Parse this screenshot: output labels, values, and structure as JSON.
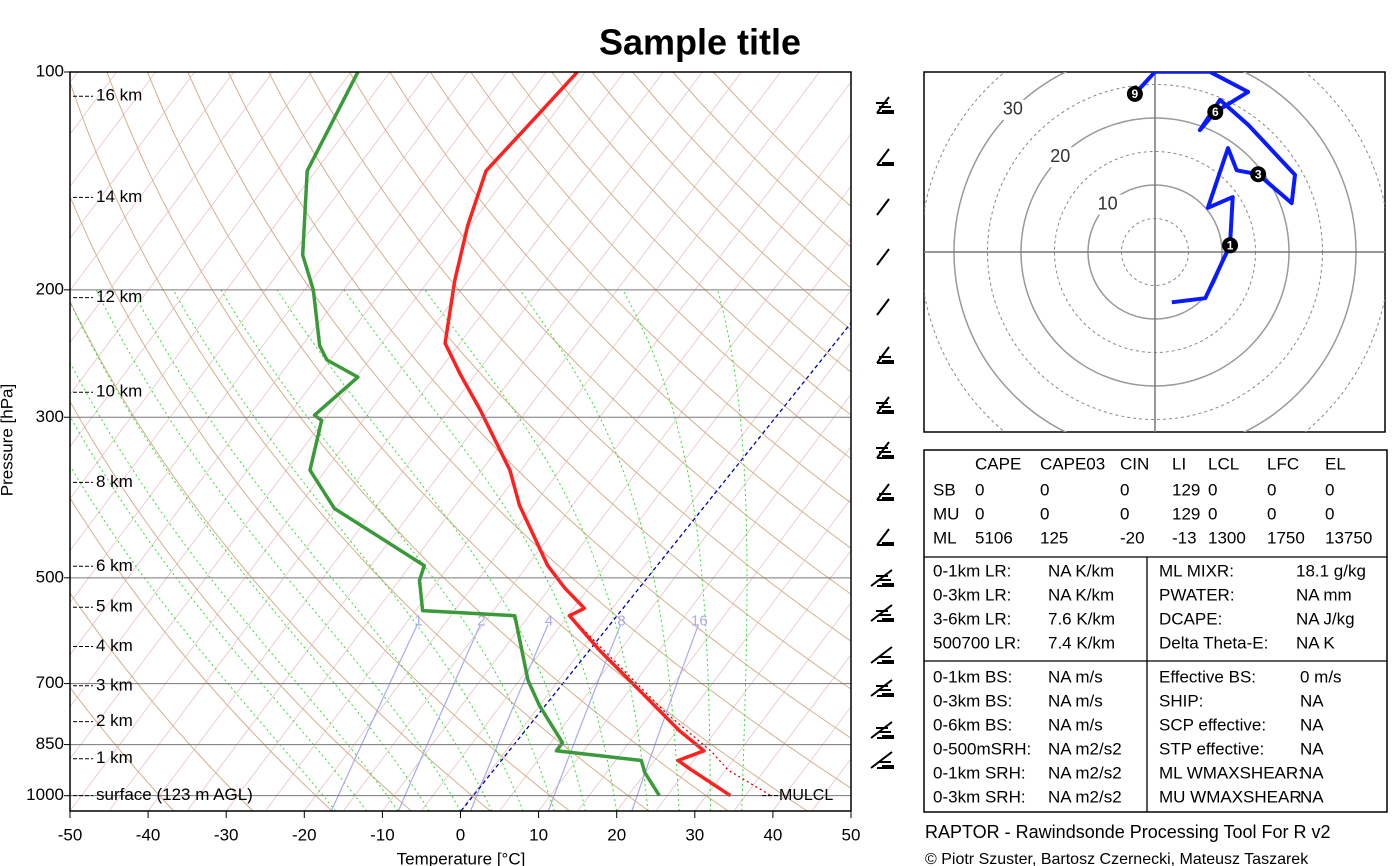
{
  "chart_data": [
    {
      "type": "skewt",
      "title": "Sample title",
      "xlabel": "Temperature [°C]",
      "ylabel": "Pressure [hPa]",
      "xlim": [
        -50,
        50
      ],
      "xticks": [
        -50,
        -40,
        -30,
        -20,
        -10,
        0,
        10,
        20,
        30,
        40,
        50
      ],
      "ylim": [
        100,
        1050
      ],
      "yticks": [
        100,
        200,
        300,
        500,
        700,
        850,
        1000
      ],
      "log_y": true,
      "grid": true,
      "series": [
        {
          "color": "#ff2020",
          "pressure": [
            1000,
            918,
            894,
            867,
            813,
            716,
            630,
            564,
            551,
            517,
            481,
            397,
            355,
            293,
            262,
            237,
            194,
            163,
            137,
            114,
            100
          ],
          "temperature": [
            33.1,
            25.3,
            23.0,
            25.4,
            20.3,
            11.4,
            2.4,
            -4.8,
            -3.6,
            -8.0,
            -12.4,
            -21.8,
            -26.4,
            -36.0,
            -41.9,
            -46.9,
            -51.7,
            -55.3,
            -58.2,
            -56.9,
            -56.0
          ]
        },
        {
          "color": "#3a9a3a",
          "pressure": [
            1000,
            929,
            894,
            867,
            845,
            751,
            693,
            564,
            555,
            504,
            481,
            401,
            355,
            303,
            298,
            264,
            250,
            239,
            200,
            179,
            137,
            100
          ],
          "temperature": [
            24.0,
            19.9,
            18.3,
            6.5,
            6.5,
            0.0,
            -3.9,
            -11.8,
            -24.1,
            -27.4,
            -28.2,
            -45.2,
            -52.0,
            -55.3,
            -56.7,
            -54.8,
            -60.4,
            -62.7,
            -68.9,
            -73.6,
            -81.1,
            -84.1
          ]
        }
      ],
      "height_labels": [
        {
          "label": "16 km",
          "pressure": 108
        },
        {
          "label": "14 km",
          "pressure": 149
        },
        {
          "label": "12 km",
          "pressure": 205
        },
        {
          "label": "10 km",
          "pressure": 277
        },
        {
          "label": "8 km",
          "pressure": 369
        },
        {
          "label": "6 km",
          "pressure": 482
        },
        {
          "label": "5 km",
          "pressure": 549
        },
        {
          "label": "4 km",
          "pressure": 622
        },
        {
          "label": "3 km",
          "pressure": 705
        },
        {
          "label": "2 km",
          "pressure": 790
        },
        {
          "label": "1 km",
          "pressure": 889
        },
        {
          "label": "surface (123 m AGL)",
          "pressure": 1000
        }
      ],
      "mixing_ratios": [
        1,
        2,
        4,
        8,
        16
      ],
      "mixing_ratio_color": "#aaaaee",
      "lcl_label": "MULCL"
    },
    {
      "type": "hodograph",
      "color": "#0a1aff",
      "rings": [
        10,
        20,
        30
      ],
      "u": [
        2.5,
        7.5,
        11.2,
        11.6,
        7.9,
        10.9,
        12.2,
        15.4,
        20.4,
        20.9,
        13.9,
        9.7,
        6.7,
        9.0,
        13.9,
        8.2,
        0.0,
        -3.0
      ],
      "v": [
        -7.5,
        -6.9,
        1.0,
        8.2,
        6.6,
        15.5,
        12.2,
        11.6,
        7.3,
        11.5,
        19.0,
        22.7,
        18.2,
        20.9,
        23.9,
        26.9,
        26.9,
        23.6
      ],
      "markers": [
        {
          "label": "1",
          "u": 11.2,
          "v": 1.0
        },
        {
          "label": "3",
          "u": 15.4,
          "v": 11.6
        },
        {
          "label": "6",
          "u": 9.0,
          "v": 20.9
        },
        {
          "label": "9",
          "u": -3.0,
          "v": 23.6
        }
      ]
    }
  ],
  "indices": {
    "header": [
      "CAPE",
      "CAPE03",
      "CIN",
      "LI",
      "LCL",
      "LFC",
      "EL"
    ],
    "rows": [
      [
        "SB",
        "0",
        "0",
        "0",
        "129",
        "0",
        "0",
        "0"
      ],
      [
        "MU",
        "0",
        "0",
        "0",
        "129",
        "0",
        "0",
        "0"
      ],
      [
        "ML",
        "5106",
        "125",
        "-20",
        "-13",
        "1300",
        "1750",
        "13750"
      ]
    ]
  },
  "params": {
    "left1": [
      [
        "0-1km LR:",
        "NA K/km"
      ],
      [
        "0-3km LR:",
        "NA K/km"
      ],
      [
        "3-6km LR:",
        "7.6 K/km"
      ],
      [
        "500700 LR:",
        "7.4 K/km"
      ]
    ],
    "right1": [
      [
        "ML MIXR:",
        "18.1 g/kg"
      ],
      [
        "PWATER:",
        "NA mm"
      ],
      [
        "DCAPE:",
        "NA J/kg"
      ],
      [
        "Delta Theta-E:",
        "NA K"
      ]
    ],
    "left2": [
      [
        "0-1km BS:",
        "NA m/s"
      ],
      [
        "0-3km BS:",
        "NA m/s"
      ],
      [
        "0-6km BS:",
        "NA m/s"
      ],
      [
        "0-500mSRH:",
        "NA m2/s2"
      ],
      [
        "0-1km SRH:",
        "NA m2/s2"
      ],
      [
        "0-3km SRH:",
        "NA m2/s2"
      ]
    ],
    "right2": [
      [
        "Effective BS:",
        "0 m/s"
      ],
      [
        "SHIP:",
        "NA"
      ],
      [
        "SCP effective:",
        "NA"
      ],
      [
        "STP effective:",
        "NA"
      ],
      [
        "ML WMAXSHEAR:",
        "NA"
      ],
      [
        "MU WMAXSHEAR",
        "NA"
      ]
    ]
  },
  "footer": [
    "RAPTOR - Rawindsonde Processing Tool For R v2",
    "© Piotr Szuster, Bartosz Czernecki, Mateusz Taszarek"
  ]
}
